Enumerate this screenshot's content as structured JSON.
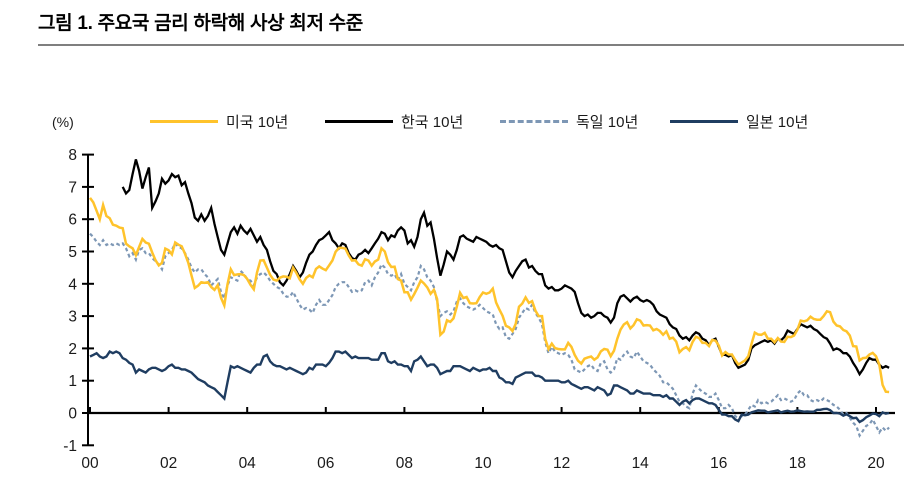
{
  "title": "그림 1. 주요국 금리 하락해 사상 최저 수준",
  "axis_unit_label": "(%)",
  "legend": {
    "items": [
      {
        "label": "미국 10년",
        "color": "#FFC32B",
        "style": "solid"
      },
      {
        "label": "한국 10년",
        "color": "#000000",
        "style": "solid"
      },
      {
        "label": "독일 10년",
        "color": "#7D97B5",
        "style": "dashed"
      },
      {
        "label": "일본 10년",
        "color": "#1F3D61",
        "style": "solid"
      }
    ]
  },
  "chart_data": {
    "type": "line",
    "title": "그림 1. 주요국 금리 하락해 사상 최저 수준",
    "xlabel": "",
    "ylabel": "(%)",
    "ylim": [
      -1,
      8
    ],
    "yticks": [
      -1,
      0,
      1,
      2,
      3,
      4,
      5,
      6,
      7,
      8
    ],
    "xticks": [
      2000,
      2002,
      2004,
      2006,
      2008,
      2010,
      2012,
      2014,
      2016,
      2018,
      2020
    ],
    "xtick_labels": [
      "00",
      "02",
      "04",
      "06",
      "08",
      "10",
      "12",
      "14",
      "16",
      "18",
      "20"
    ],
    "grid": false,
    "legend_position": "top",
    "x_start": 2000,
    "x_step": "monthly",
    "draw_order": [
      2,
      1,
      0,
      3
    ],
    "series": [
      {
        "name": "미국 10년",
        "color": "#FFC32B",
        "style": "solid",
        "width": 2.5,
        "values": [
          6.66,
          6.52,
          6.26,
          6.0,
          6.44,
          6.1,
          6.03,
          5.83,
          5.8,
          5.74,
          5.72,
          5.24,
          5.16,
          5.1,
          4.89,
          5.14,
          5.39,
          5.28,
          5.24,
          4.97,
          4.73,
          4.57,
          4.65,
          5.09,
          5.04,
          4.91,
          5.28,
          5.21,
          5.16,
          4.93,
          4.65,
          4.26,
          3.87,
          3.94,
          4.05,
          4.03,
          4.05,
          3.9,
          3.81,
          3.96,
          3.57,
          3.33,
          3.98,
          4.45,
          4.27,
          4.29,
          4.3,
          4.27,
          4.15,
          3.97,
          3.83,
          4.35,
          4.72,
          4.73,
          4.5,
          4.28,
          4.13,
          4.1,
          4.19,
          4.23,
          4.22,
          4.17,
          4.5,
          4.34,
          4.14,
          4.0,
          4.18,
          4.26,
          4.2,
          4.46,
          4.54,
          4.47,
          4.42,
          4.57,
          4.72,
          4.99,
          5.11,
          5.11,
          5.09,
          4.88,
          4.72,
          4.73,
          4.6,
          4.56,
          4.76,
          4.72,
          4.56,
          4.69,
          4.75,
          5.1,
          5.0,
          4.67,
          4.52,
          4.53,
          4.15,
          4.1,
          3.74,
          3.74,
          3.51,
          3.68,
          3.88,
          4.1,
          4.01,
          3.89,
          3.69,
          3.81,
          3.53,
          2.42,
          2.52,
          2.87,
          2.82,
          2.93,
          3.29,
          3.72,
          3.56,
          3.59,
          3.4,
          3.39,
          3.4,
          3.59,
          3.73,
          3.69,
          3.73,
          3.85,
          3.42,
          3.2,
          3.01,
          2.7,
          2.65,
          2.54,
          2.76,
          3.29,
          3.39,
          3.58,
          3.41,
          3.46,
          3.17,
          3.0,
          3.0,
          2.3,
          1.98,
          2.15,
          2.01,
          1.98,
          1.97,
          1.97,
          2.17,
          2.05,
          1.8,
          1.62,
          1.53,
          1.68,
          1.72,
          1.75,
          1.65,
          1.72,
          1.91,
          1.98,
          1.96,
          1.76,
          1.93,
          2.3,
          2.58,
          2.74,
          2.81,
          2.62,
          2.72,
          2.9,
          2.86,
          2.71,
          2.72,
          2.71,
          2.56,
          2.6,
          2.54,
          2.42,
          2.53,
          2.3,
          2.33,
          2.21,
          1.88,
          1.98,
          2.04,
          1.94,
          2.2,
          2.36,
          2.32,
          2.17,
          2.17,
          2.07,
          2.26,
          2.24,
          2.09,
          1.78,
          1.89,
          1.81,
          1.81,
          1.64,
          1.5,
          1.56,
          1.63,
          1.76,
          2.14,
          2.49,
          2.43,
          2.42,
          2.48,
          2.3,
          2.3,
          2.19,
          2.32,
          2.21,
          2.2,
          2.36,
          2.35,
          2.4,
          2.58,
          2.86,
          2.84,
          2.87,
          2.98,
          2.91,
          2.89,
          2.89,
          3.0,
          3.15,
          3.12,
          2.83,
          2.71,
          2.68,
          2.57,
          2.53,
          2.4,
          2.07,
          2.06,
          1.63,
          1.7,
          1.71,
          1.81,
          1.86,
          1.76,
          1.5,
          0.87,
          0.66,
          0.65
        ]
      },
      {
        "name": "한국 10년",
        "color": "#000000",
        "style": "solid",
        "width": 2.3,
        "values": [
          null,
          null,
          null,
          null,
          null,
          null,
          null,
          null,
          null,
          null,
          7.0,
          6.8,
          6.9,
          7.4,
          7.85,
          7.5,
          6.95,
          7.3,
          7.6,
          6.35,
          6.55,
          6.8,
          7.25,
          7.1,
          7.2,
          7.4,
          7.3,
          7.35,
          7.05,
          7.15,
          6.8,
          6.5,
          6.05,
          5.95,
          6.15,
          5.95,
          6.1,
          6.35,
          5.85,
          5.45,
          5.05,
          4.9,
          5.25,
          5.6,
          5.75,
          5.55,
          5.8,
          5.65,
          5.55,
          5.7,
          5.5,
          5.3,
          5.45,
          5.2,
          5.05,
          4.7,
          4.4,
          4.3,
          4.05,
          3.95,
          4.1,
          4.3,
          4.55,
          4.4,
          4.2,
          4.35,
          4.65,
          4.9,
          5.0,
          5.2,
          5.35,
          5.4,
          5.5,
          5.6,
          5.35,
          5.25,
          5.1,
          5.25,
          5.2,
          4.95,
          4.8,
          4.75,
          4.9,
          4.95,
          5.05,
          4.95,
          5.1,
          5.25,
          5.4,
          5.6,
          5.55,
          5.35,
          5.5,
          5.45,
          5.65,
          5.75,
          5.65,
          5.25,
          5.35,
          5.15,
          5.45,
          6.0,
          6.2,
          5.8,
          5.9,
          5.4,
          4.8,
          4.25,
          4.6,
          5.0,
          4.9,
          4.75,
          5.05,
          5.45,
          5.5,
          5.4,
          5.35,
          5.3,
          5.45,
          5.4,
          5.35,
          5.3,
          5.2,
          5.15,
          5.2,
          5.1,
          5.05,
          4.7,
          4.35,
          4.2,
          4.4,
          4.55,
          4.7,
          4.75,
          4.5,
          4.55,
          4.4,
          4.3,
          4.3,
          3.95,
          3.85,
          3.9,
          3.8,
          3.8,
          3.85,
          3.95,
          3.9,
          3.85,
          3.75,
          3.4,
          3.1,
          3.0,
          3.05,
          2.95,
          3.0,
          3.1,
          3.1,
          3.0,
          2.95,
          2.8,
          2.95,
          3.4,
          3.6,
          3.65,
          3.55,
          3.45,
          3.55,
          3.6,
          3.5,
          3.45,
          3.5,
          3.45,
          3.35,
          3.15,
          3.05,
          3.0,
          2.95,
          2.75,
          2.65,
          2.6,
          2.4,
          2.3,
          2.35,
          2.25,
          2.4,
          2.5,
          2.45,
          2.3,
          2.25,
          2.1,
          2.25,
          2.3,
          2.05,
          1.8,
          1.8,
          1.75,
          1.8,
          1.55,
          1.4,
          1.45,
          1.5,
          1.65,
          2.0,
          2.1,
          2.15,
          2.2,
          2.25,
          2.2,
          2.25,
          2.15,
          2.3,
          2.25,
          2.35,
          2.55,
          2.5,
          2.45,
          2.6,
          2.75,
          2.7,
          2.65,
          2.7,
          2.6,
          2.55,
          2.45,
          2.35,
          2.3,
          2.15,
          1.95,
          2.0,
          1.95,
          1.85,
          1.85,
          1.75,
          1.55,
          1.4,
          1.2,
          1.35,
          1.55,
          1.7,
          1.65,
          1.65,
          1.5,
          1.4,
          1.45,
          1.4
        ]
      },
      {
        "name": "독일 10년",
        "color": "#7D97B5",
        "style": "dashed",
        "width": 2.2,
        "values": [
          5.55,
          5.45,
          5.3,
          5.2,
          5.35,
          5.2,
          5.25,
          5.2,
          5.25,
          5.2,
          5.25,
          5.1,
          4.85,
          4.95,
          4.75,
          5.05,
          5.1,
          4.95,
          4.95,
          4.8,
          4.7,
          4.6,
          4.45,
          4.85,
          4.95,
          5.05,
          5.25,
          5.15,
          5.1,
          4.95,
          4.75,
          4.5,
          4.35,
          4.45,
          4.45,
          4.3,
          4.2,
          3.95,
          4.05,
          4.15,
          3.75,
          3.55,
          3.95,
          4.2,
          4.15,
          4.1,
          4.4,
          4.3,
          4.15,
          4.1,
          3.95,
          4.2,
          4.3,
          4.35,
          4.25,
          4.1,
          4.0,
          3.9,
          3.85,
          3.7,
          3.6,
          3.6,
          3.75,
          3.55,
          3.35,
          3.2,
          3.25,
          3.2,
          3.1,
          3.35,
          3.5,
          3.35,
          3.35,
          3.5,
          3.65,
          3.9,
          4.0,
          4.05,
          4.05,
          3.9,
          3.75,
          3.8,
          3.75,
          3.8,
          4.05,
          4.1,
          3.95,
          4.2,
          4.35,
          4.6,
          4.5,
          4.3,
          4.25,
          4.3,
          4.1,
          4.3,
          4.0,
          3.9,
          3.8,
          4.05,
          4.2,
          4.55,
          4.45,
          4.2,
          4.1,
          3.9,
          3.45,
          3.0,
          3.1,
          3.15,
          3.05,
          3.15,
          3.45,
          3.55,
          3.4,
          3.3,
          3.25,
          3.2,
          3.25,
          3.35,
          3.25,
          3.15,
          3.1,
          3.05,
          2.75,
          2.6,
          2.65,
          2.35,
          2.3,
          2.45,
          2.6,
          2.95,
          3.1,
          3.25,
          3.2,
          3.35,
          3.1,
          2.95,
          2.75,
          2.2,
          1.85,
          2.05,
          1.9,
          1.85,
          1.8,
          1.85,
          1.8,
          1.65,
          1.35,
          1.3,
          1.25,
          1.35,
          1.45,
          1.5,
          1.35,
          1.3,
          1.55,
          1.6,
          1.35,
          1.25,
          1.35,
          1.7,
          1.65,
          1.8,
          1.9,
          1.75,
          1.7,
          1.9,
          1.75,
          1.6,
          1.55,
          1.5,
          1.35,
          1.25,
          1.15,
          0.95,
          0.95,
          0.85,
          0.75,
          0.55,
          0.35,
          0.3,
          0.2,
          0.15,
          0.6,
          0.85,
          0.75,
          0.65,
          0.6,
          0.5,
          0.5,
          0.6,
          0.4,
          0.15,
          0.15,
          0.25,
          0.15,
          -0.1,
          -0.15,
          -0.1,
          -0.05,
          0.1,
          0.25,
          0.2,
          0.4,
          0.3,
          0.35,
          0.3,
          0.35,
          0.45,
          0.55,
          0.4,
          0.45,
          0.4,
          0.35,
          0.4,
          0.6,
          0.7,
          0.55,
          0.55,
          0.4,
          0.35,
          0.4,
          0.35,
          0.45,
          0.4,
          0.35,
          0.25,
          0.2,
          0.1,
          -0.05,
          0.0,
          -0.15,
          -0.3,
          -0.4,
          -0.7,
          -0.55,
          -0.4,
          -0.35,
          -0.2,
          -0.4,
          -0.6,
          -0.45,
          -0.55,
          -0.45
        ]
      },
      {
        "name": "일본 10년",
        "color": "#1F3D61",
        "style": "solid",
        "width": 2.4,
        "values": [
          1.75,
          1.8,
          1.85,
          1.75,
          1.7,
          1.75,
          1.9,
          1.85,
          1.9,
          1.85,
          1.7,
          1.65,
          1.55,
          1.5,
          1.25,
          1.35,
          1.3,
          1.25,
          1.35,
          1.4,
          1.4,
          1.35,
          1.3,
          1.35,
          1.45,
          1.5,
          1.4,
          1.4,
          1.35,
          1.35,
          1.3,
          1.25,
          1.15,
          1.05,
          1.0,
          0.95,
          0.85,
          0.8,
          0.75,
          0.65,
          0.55,
          0.45,
          0.95,
          1.45,
          1.4,
          1.45,
          1.4,
          1.35,
          1.3,
          1.25,
          1.4,
          1.5,
          1.5,
          1.75,
          1.8,
          1.6,
          1.5,
          1.45,
          1.45,
          1.4,
          1.35,
          1.4,
          1.35,
          1.3,
          1.25,
          1.2,
          1.25,
          1.4,
          1.35,
          1.5,
          1.5,
          1.5,
          1.45,
          1.55,
          1.7,
          1.9,
          1.9,
          1.85,
          1.9,
          1.8,
          1.7,
          1.75,
          1.7,
          1.7,
          1.7,
          1.7,
          1.65,
          1.65,
          1.65,
          1.85,
          1.85,
          1.6,
          1.55,
          1.6,
          1.5,
          1.5,
          1.45,
          1.45,
          1.3,
          1.6,
          1.65,
          1.75,
          1.6,
          1.45,
          1.5,
          1.5,
          1.4,
          1.2,
          1.25,
          1.3,
          1.3,
          1.45,
          1.45,
          1.45,
          1.4,
          1.35,
          1.3,
          1.4,
          1.35,
          1.3,
          1.35,
          1.35,
          1.4,
          1.3,
          1.3,
          1.1,
          1.05,
          0.95,
          0.95,
          0.9,
          1.1,
          1.15,
          1.2,
          1.25,
          1.25,
          1.25,
          1.15,
          1.15,
          1.1,
          1.0,
          1.0,
          1.0,
          1.0,
          1.0,
          0.95,
          0.95,
          1.0,
          0.9,
          0.85,
          0.8,
          0.75,
          0.8,
          0.8,
          0.75,
          0.7,
          0.8,
          0.75,
          0.7,
          0.55,
          0.6,
          0.85,
          0.85,
          0.8,
          0.75,
          0.7,
          0.6,
          0.6,
          0.7,
          0.65,
          0.6,
          0.6,
          0.6,
          0.55,
          0.55,
          0.55,
          0.5,
          0.55,
          0.45,
          0.45,
          0.35,
          0.25,
          0.35,
          0.4,
          0.3,
          0.4,
          0.45,
          0.45,
          0.4,
          0.35,
          0.3,
          0.3,
          0.25,
          0.1,
          -0.05,
          -0.05,
          -0.1,
          -0.1,
          -0.2,
          -0.25,
          -0.05,
          -0.07,
          -0.05,
          0.02,
          0.05,
          0.08,
          0.07,
          0.07,
          0.02,
          0.04,
          0.06,
          0.08,
          0.02,
          0.05,
          0.07,
          0.04,
          0.05,
          0.08,
          0.06,
          0.04,
          0.05,
          0.04,
          0.04,
          0.1,
          0.1,
          0.12,
          0.13,
          0.09,
          0.0,
          0.0,
          -0.02,
          -0.08,
          -0.04,
          -0.1,
          -0.16,
          -0.15,
          -0.28,
          -0.22,
          -0.13,
          -0.08,
          -0.02,
          -0.03,
          -0.1,
          0.02,
          -0.02,
          0.0
        ]
      }
    ]
  }
}
